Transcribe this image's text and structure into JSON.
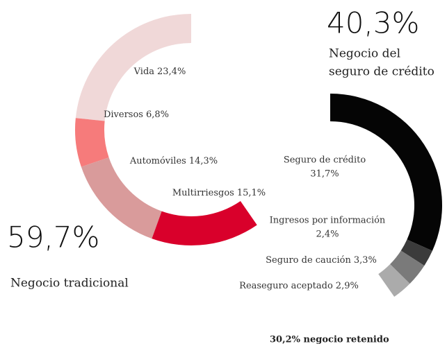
{
  "chart_data": [
    {
      "type": "donut",
      "direction": "counterclockwise",
      "total_label": "59,7%",
      "label": [
        "Negocio tradicional"
      ],
      "categories": [
        "Vida",
        "Diversos",
        "Automóviles",
        "Multirriesgos"
      ],
      "values": [
        23.4,
        6.8,
        14.3,
        15.1
      ],
      "value_labels": [
        "23,4%",
        "6,8%",
        "14,3%",
        "15,1%"
      ],
      "colors": [
        "#f0d8d8",
        "#f67b7b",
        "#d99b9b",
        "#d9002b"
      ]
    },
    {
      "type": "donut",
      "direction": "clockwise",
      "total_label": "40,3%",
      "label": [
        "Negocio del",
        "seguro de crédito"
      ],
      "categories": [
        "Seguro de crédito",
        "Ingresos por información",
        "Seguro de caución",
        "Reaseguro aceptado"
      ],
      "values": [
        31.7,
        2.4,
        3.3,
        2.9
      ],
      "value_labels": [
        "31,7%",
        "2,4%",
        "3,3%",
        "2,9%"
      ],
      "colors": [
        "#050505",
        "#3b3b3b",
        "#7a7a7a",
        "#ababab"
      ],
      "footnote": "30,2% negocio retenido"
    }
  ]
}
